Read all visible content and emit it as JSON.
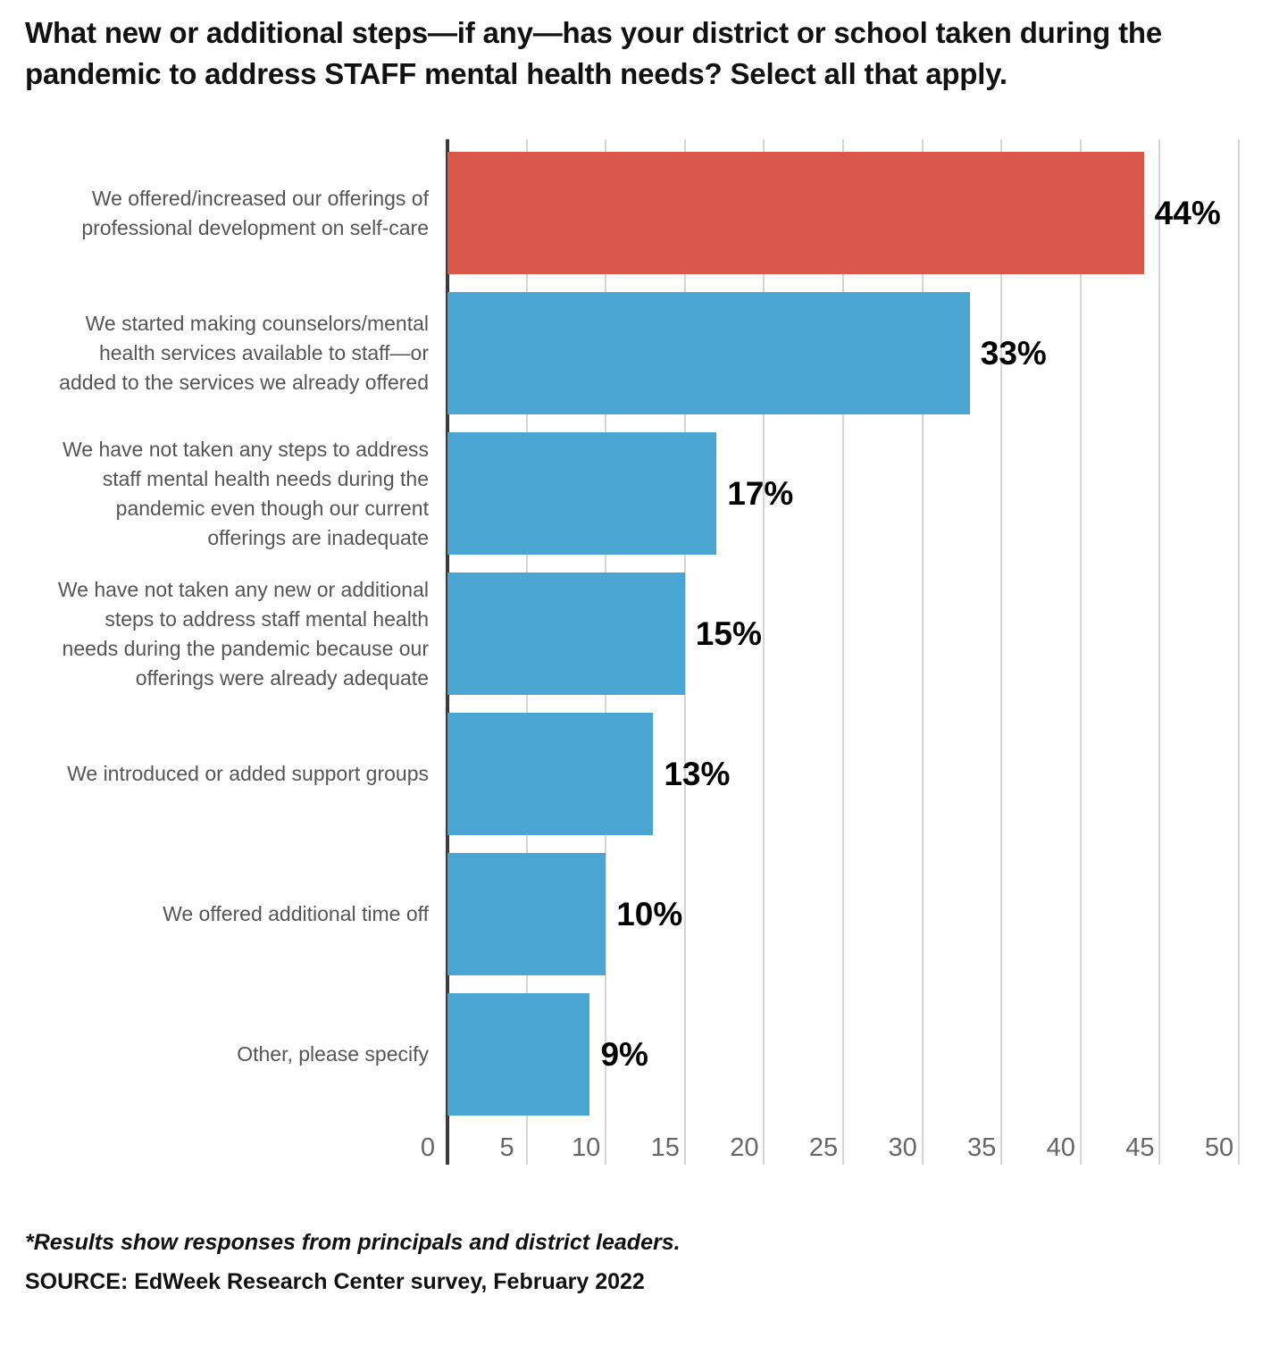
{
  "title": "What new or additional steps—if any—has your district or school taken during the pandemic to address STAFF mental health needs? Select all that apply.",
  "chart_data": {
    "type": "bar",
    "orientation": "horizontal",
    "title": "What new or additional steps—if any—has your district or school taken during the pandemic to address STAFF mental health needs? Select all that apply.",
    "categories": [
      "We offered/increased our offerings of\nprofessional development on self-care",
      "We started making counselors/mental\nhealth services available to staff—or\nadded to the services we already offered",
      "We have not taken any steps to address\nstaff mental health needs during the\npandemic even though our current\nofferings are inadequate",
      "We have not taken any new or additional\nsteps to address staff mental health\nneeds during the pandemic because our\nofferings were already adequate",
      "We introduced or added support groups",
      "We offered additional time off",
      "Other, please specify"
    ],
    "values": [
      44,
      33,
      17,
      15,
      13,
      10,
      9
    ],
    "value_labels": [
      "44%",
      "33%",
      "17%",
      "15%",
      "13%",
      "10%",
      "9%"
    ],
    "bar_colors": [
      "#d9584a",
      "#4aa5d2",
      "#4aa5d2",
      "#4aa5d2",
      "#4aa5d2",
      "#4aa5d2",
      "#4aa5d2"
    ],
    "xlabel": "",
    "ylabel": "",
    "xlim": [
      0,
      50
    ],
    "xticks": [
      0,
      5,
      10,
      15,
      20,
      25,
      30,
      35,
      40,
      45,
      50
    ],
    "grid": true,
    "grid_color": "#d5d5d5",
    "axis_color": "#3a3a3a",
    "value_label_color": "#000000",
    "category_label_color": "#555555",
    "tick_label_color": "#666666",
    "legend": "none"
  },
  "footnote": "*Results show responses from principals and district leaders.",
  "source": "SOURCE: EdWeek Research Center survey, February 2022"
}
